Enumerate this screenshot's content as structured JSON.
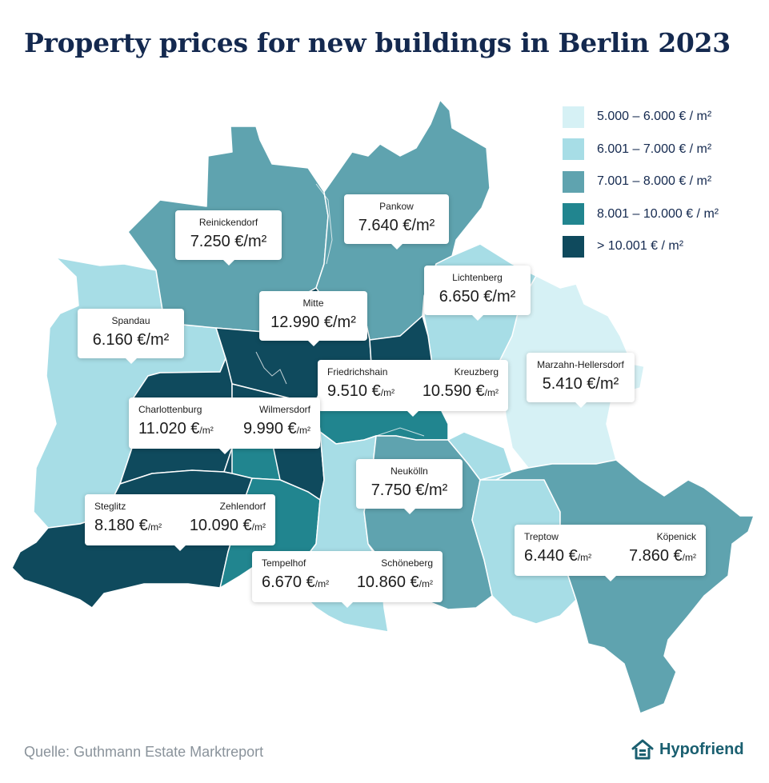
{
  "title": "Property prices for new buildings in Berlin 2023",
  "colors": {
    "c1": "#d6f1f5",
    "c2": "#a7dde6",
    "c3": "#5fa3af",
    "c4": "#21858f",
    "c5": "#0f4a5d",
    "text": "#14294f",
    "brand": "#1a5f70"
  },
  "legend": [
    {
      "label": "5.000 – 6.000 € / m²",
      "color": "#d6f1f5"
    },
    {
      "label": "6.001 – 7.000 € / m²",
      "color": "#a7dde6"
    },
    {
      "label": "7.001 – 8.000 € / m²",
      "color": "#5fa3af"
    },
    {
      "label": "8.001 – 10.000 € / m²",
      "color": "#21858f"
    },
    {
      "label": "> 10.001 € / m²",
      "color": "#0f4a5d"
    }
  ],
  "districts": {
    "reinickendorf": {
      "name": "Reinickendorf",
      "price": "7.250 €/m²"
    },
    "pankow": {
      "name": "Pankow",
      "price": "7.640 €/m²"
    },
    "spandau": {
      "name": "Spandau",
      "price": "6.160 €/m²"
    },
    "mitte": {
      "name": "Mitte",
      "price": "12.990 €/m²"
    },
    "lichtenberg": {
      "name": "Lichtenberg",
      "price": "6.650 €/m²"
    },
    "marzahn": {
      "name": "Marzahn-Hellersdorf",
      "price": "5.410 €/m²"
    },
    "friedrichshain": {
      "name": "Friedrichshain",
      "price": "9.510 €",
      "unit": "/m²"
    },
    "kreuzberg": {
      "name": "Kreuzberg",
      "price": "10.590 €",
      "unit": "/m²"
    },
    "charlottenburg": {
      "name": "Charlottenburg",
      "price": "11.020 €",
      "unit": "/m²"
    },
    "wilmersdorf": {
      "name": "Wilmersdorf",
      "price": "9.990 €",
      "unit": "/m²"
    },
    "neukoelln": {
      "name": "Neukölln",
      "price": "7.750 €/m²"
    },
    "steglitz": {
      "name": "Steglitz",
      "price": "8.180 €",
      "unit": "/m²"
    },
    "zehlendorf": {
      "name": "Zehlendorf",
      "price": "10.090 €",
      "unit": "/m²"
    },
    "tempelhof": {
      "name": "Tempelhof",
      "price": "6.670 €",
      "unit": "/m²"
    },
    "schoeneberg": {
      "name": "Schöneberg",
      "price": "10.860 €",
      "unit": "/m²"
    },
    "treptow": {
      "name": "Treptow",
      "price": "6.440 €",
      "unit": "/m²"
    },
    "koepenick": {
      "name": "Köpenick",
      "price": "7.860 €",
      "unit": "/m²"
    }
  },
  "source": "Quelle: Guthmann Estate Marktreport",
  "brand": {
    "name": "Hypofriend",
    "icon": "house-icon"
  }
}
